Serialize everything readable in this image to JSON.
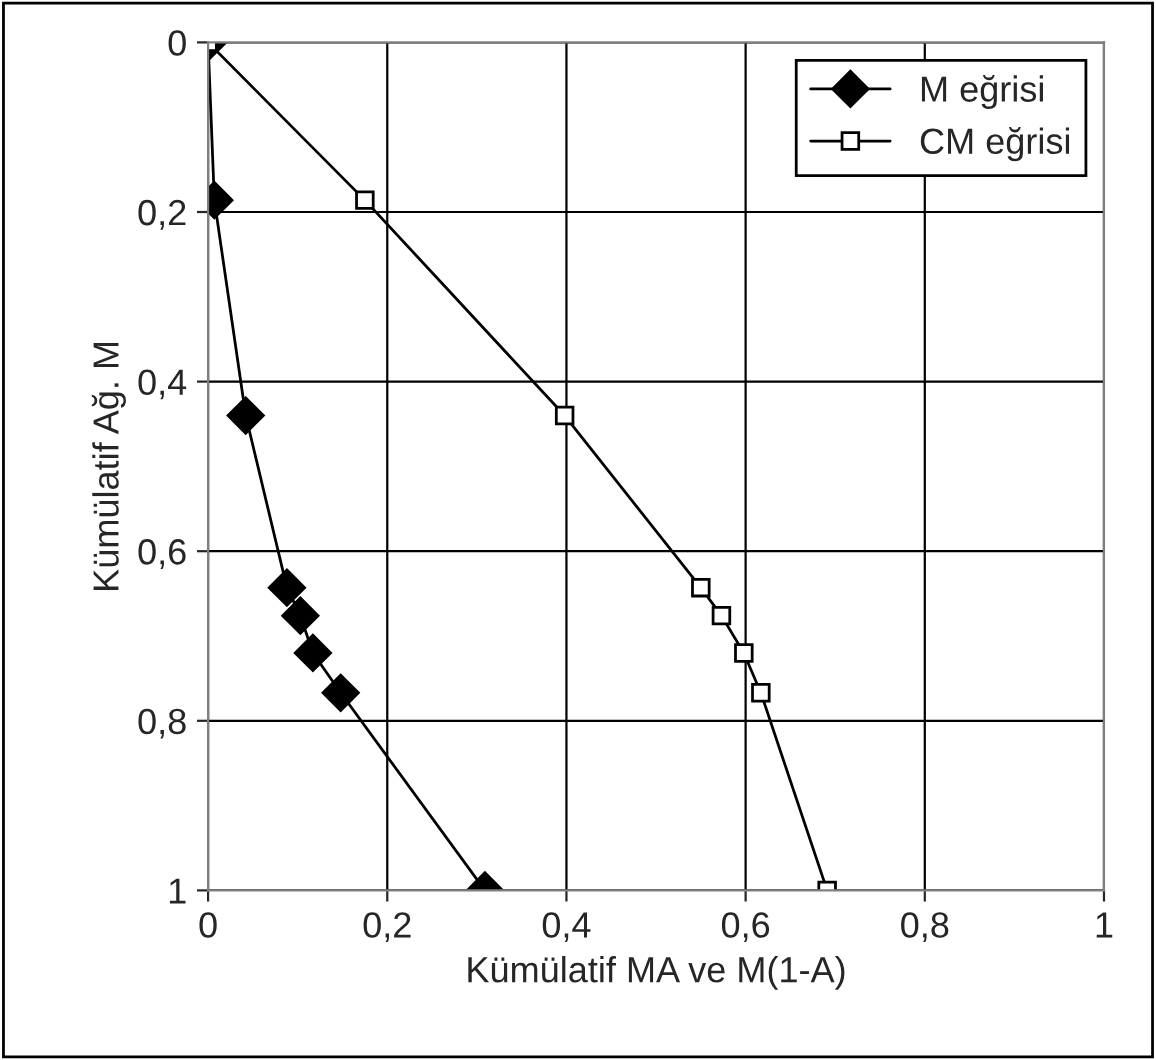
{
  "chart_data": {
    "type": "line",
    "xlabel": "Kümülatif MA ve M(1-A)",
    "ylabel": "Kümülatif Ağ. M",
    "xlim": [
      0,
      1
    ],
    "ylim": [
      1,
      0
    ],
    "xticks": [
      0,
      {
        "value": 0.2,
        "label": "0,2"
      },
      {
        "value": 0.4,
        "label": "0,4"
      },
      {
        "value": 0.6,
        "label": "0,6"
      },
      {
        "value": 0.8,
        "label": "0,8"
      },
      1
    ],
    "yticks": [
      0,
      {
        "value": 0.2,
        "label": "0,2"
      },
      {
        "value": 0.4,
        "label": "0,4"
      },
      {
        "value": 0.6,
        "label": "0,6"
      },
      {
        "value": 0.8,
        "label": "0,8"
      },
      1
    ],
    "grid": true,
    "legend": "top right",
    "series": [
      {
        "name": "M eğrisi",
        "color": "#000000",
        "marker": "diamond",
        "x": [
          0,
          0.007,
          0.042,
          0.088,
          0.103,
          0.117,
          0.148,
          0.309
        ],
        "values": [
          0,
          0.186,
          0.44,
          0.643,
          0.676,
          0.72,
          0.767,
          1.0
        ]
      },
      {
        "name": "CM eğrisi",
        "color": "#000000",
        "marker": "square",
        "x": [
          0,
          0.175,
          0.398,
          0.55,
          0.573,
          0.598,
          0.617,
          0.691
        ],
        "values": [
          0,
          0.186,
          0.44,
          0.643,
          0.676,
          0.72,
          0.767,
          1.0
        ]
      }
    ]
  }
}
